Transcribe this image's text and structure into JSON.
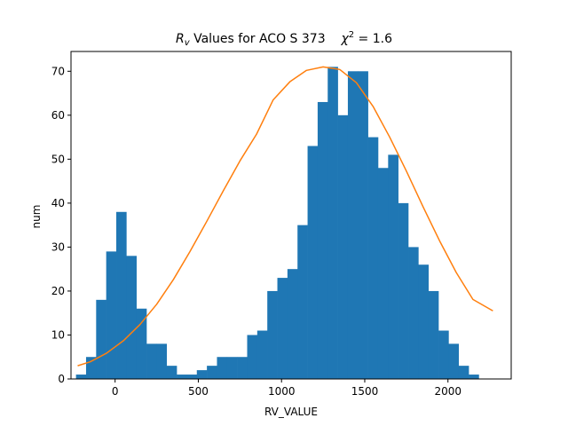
{
  "chart_data": {
    "type": "bar",
    "title": {
      "italic_var": "R",
      "italic_sub": "v",
      "main": " Values for ACO S  373",
      "chi_sym": "χ",
      "chi_sup": "2",
      "chi_value": " = 1.6"
    },
    "xlabel": "RV_VALUE",
    "ylabel": "num",
    "xlim": [
      -265,
      2380
    ],
    "ylim": [
      0,
      74.5
    ],
    "xticks": [
      0,
      500,
      1000,
      1500,
      2000
    ],
    "yticks": [
      0,
      10,
      20,
      30,
      40,
      50,
      60,
      70
    ],
    "grid": false,
    "bins": {
      "start": -235,
      "width": 60.5,
      "counts": [
        1,
        5,
        18,
        29,
        38,
        28,
        16,
        8,
        8,
        3,
        1,
        1,
        2,
        3,
        5,
        5,
        5,
        10,
        11,
        20,
        23,
        25,
        35,
        53,
        63,
        71,
        60,
        70,
        70,
        55,
        48,
        51,
        40,
        30,
        26,
        20,
        11,
        8,
        3,
        1
      ]
    },
    "fit_curve": {
      "x": [
        -225,
        -150,
        -50,
        50,
        150,
        250,
        350,
        450,
        550,
        650,
        750,
        850,
        950,
        1050,
        1150,
        1250,
        1350,
        1450,
        1550,
        1650,
        1750,
        1850,
        1950,
        2050,
        2150,
        2270
      ],
      "y": [
        3,
        3.9,
        5.9,
        8.7,
        12.4,
        17,
        22.6,
        29,
        35.8,
        42.8,
        49.6,
        55.7,
        63.5,
        67.6,
        70.2,
        71,
        70.4,
        67.4,
        62,
        55,
        47.3,
        39.2,
        31.4,
        24.2,
        18.1,
        15.5
      ]
    },
    "colors": {
      "bars": "#1f77b4",
      "curve": "#ff7f0e",
      "axes": "#000000"
    }
  }
}
